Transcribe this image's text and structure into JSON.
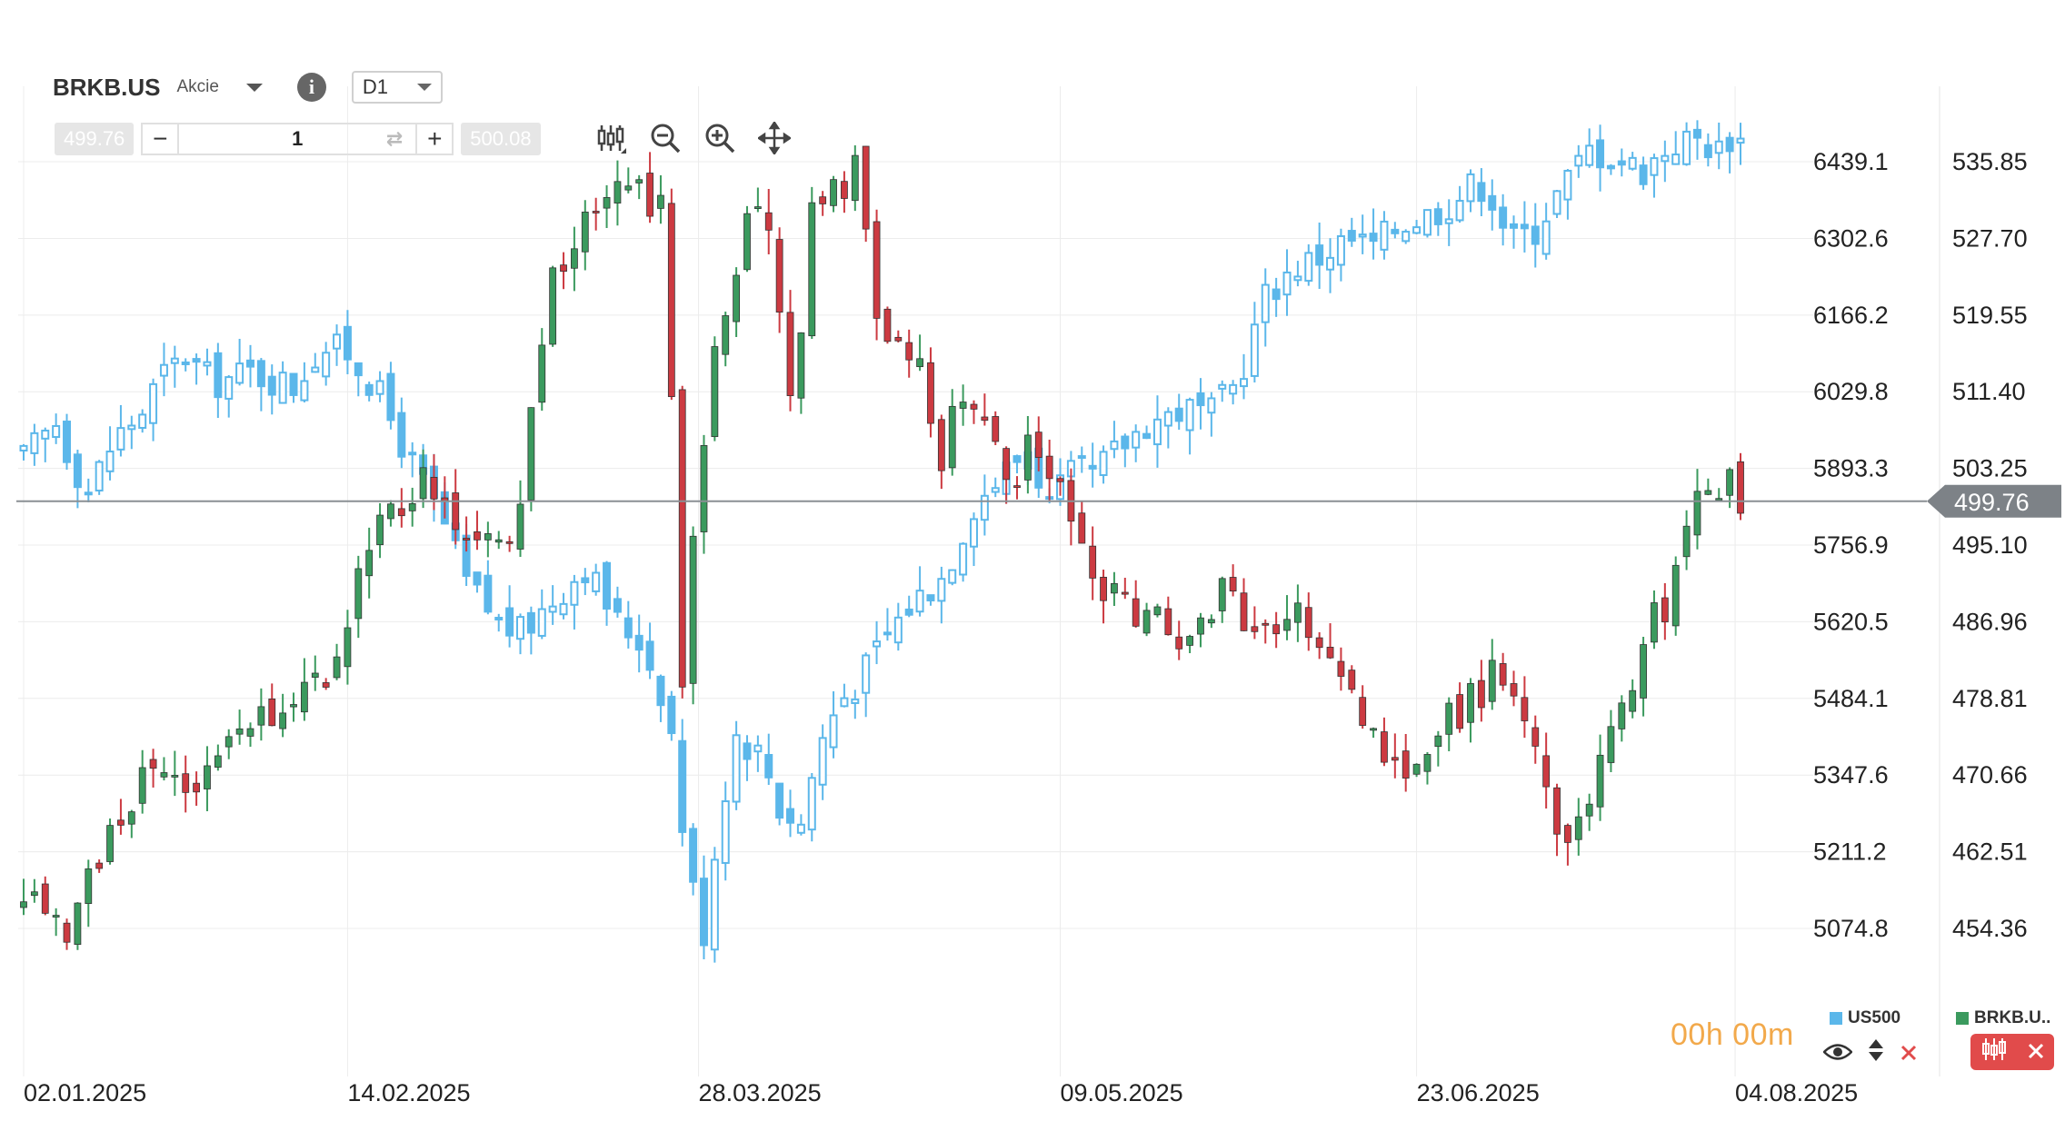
{
  "toolbar": {
    "symbol": "BRKB.US",
    "symbol_type": "Akcie",
    "timeframe": "D1",
    "sell_price": "499.76",
    "buy_price": "500.08",
    "volume": "1",
    "minus_label": "−",
    "plus_label": "+",
    "tools": [
      "candles-icon",
      "zoom-out-icon",
      "zoom-in-icon",
      "move-icon"
    ]
  },
  "timer": "00h 00m",
  "legend": {
    "us500_label": "US500",
    "us500_color": "#5bb7ea",
    "brkb_label": "BRKB.U..",
    "brkb_color": "#3b9a5e"
  },
  "colors": {
    "up": "#3b9a5e",
    "down": "#cc3a41",
    "us500": "#5bb7ea",
    "price_line": "#8a8f94",
    "price_tag": "#7d8287"
  },
  "chart_data": {
    "type": "candlestick",
    "title": "",
    "x_labels": [
      "02.01.2025",
      "14.02.2025",
      "28.03.2025",
      "09.05.2025",
      "23.06.2025",
      "04.08.2025"
    ],
    "left_axis": {
      "label": "",
      "ticks": [
        6439.1,
        6302.6,
        6166.2,
        6029.8,
        5893.3,
        5756.9,
        5620.5,
        5484.1,
        5347.6,
        5211.2,
        5074.8
      ],
      "tick_labels": [
        "6439.1",
        "6302.6",
        "6166.2",
        "6029.8",
        "5893.3",
        "5756.9",
        "5620.5",
        "5484.1",
        "5347.6",
        "5211.2",
        "5074.8"
      ]
    },
    "right_axis": {
      "label": "",
      "ticks": [
        535.85,
        527.7,
        519.55,
        511.4,
        503.25,
        495.1,
        486.96,
        478.81,
        470.66,
        462.51,
        454.36
      ],
      "tick_labels": [
        "535.85",
        "527.70",
        "519.55",
        "511.40",
        "503.25",
        "495.10",
        "486.96",
        "478.81",
        "470.66",
        "462.51",
        "454.36"
      ]
    },
    "current_price": 499.76,
    "current_price_label": "499.76",
    "grid": true,
    "series": [
      {
        "name": "US500",
        "axis": "left",
        "style": "hollow-candles",
        "close_path": [
          [
            0,
            5910
          ],
          [
            6,
            5975
          ],
          [
            9,
            5905
          ],
          [
            12,
            5855
          ],
          [
            17,
            5948
          ],
          [
            22,
            5995
          ],
          [
            25,
            6050
          ],
          [
            30,
            6095
          ],
          [
            35,
            6045
          ],
          [
            42,
            6065
          ],
          [
            50,
            6040
          ],
          [
            55,
            6110
          ],
          [
            60,
            6100
          ],
          [
            65,
            6040
          ],
          [
            68,
            5980
          ],
          [
            72,
            5900
          ],
          [
            78,
            5790
          ],
          [
            82,
            5690
          ],
          [
            88,
            5620
          ],
          [
            92,
            5600
          ],
          [
            98,
            5660
          ],
          [
            104,
            5720
          ],
          [
            110,
            5620
          ],
          [
            114,
            5590
          ],
          [
            118,
            5500
          ],
          [
            120,
            5420
          ],
          [
            123,
            5180
          ],
          [
            126,
            5070
          ],
          [
            129,
            5280
          ],
          [
            132,
            5420
          ],
          [
            137,
            5380
          ],
          [
            140,
            5290
          ],
          [
            144,
            5260
          ],
          [
            147,
            5390
          ],
          [
            151,
            5480
          ],
          [
            155,
            5520
          ],
          [
            160,
            5600
          ],
          [
            165,
            5660
          ],
          [
            170,
            5700
          ],
          [
            173,
            5760
          ],
          [
            176,
            5830
          ],
          [
            180,
            5870
          ],
          [
            186,
            5930
          ],
          [
            190,
            5830
          ],
          [
            195,
            5890
          ],
          [
            198,
            5880
          ],
          [
            203,
            5930
          ],
          [
            208,
            5975
          ],
          [
            215,
            6000
          ],
          [
            220,
            5990
          ],
          [
            225,
            6050
          ],
          [
            230,
            6200
          ],
          [
            235,
            6250
          ],
          [
            240,
            6270
          ],
          [
            245,
            6300
          ],
          [
            250,
            6290
          ],
          [
            255,
            6330
          ],
          [
            260,
            6345
          ],
          [
            265,
            6370
          ],
          [
            268,
            6395
          ],
          [
            271,
            6400
          ],
          [
            273,
            6350
          ],
          [
            276,
            6300
          ],
          [
            280,
            6320
          ],
          [
            285,
            6395
          ],
          [
            290,
            6460
          ],
          [
            295,
            6445
          ],
          [
            300,
            6425
          ],
          [
            305,
            6470
          ],
          [
            310,
            6480
          ],
          [
            314,
            6460
          ],
          [
            316,
            6485
          ],
          [
            318,
            6475
          ]
        ]
      },
      {
        "name": "BRKB.US",
        "axis": "right",
        "style": "candles",
        "close_path": [
          [
            0,
            456.0
          ],
          [
            4,
            457.5
          ],
          [
            8,
            451.5
          ],
          [
            13,
            461.5
          ],
          [
            18,
            465.5
          ],
          [
            23,
            472.5
          ],
          [
            27,
            470.0
          ],
          [
            33,
            469.5
          ],
          [
            38,
            473.5
          ],
          [
            43,
            476.0
          ],
          [
            48,
            478.0
          ],
          [
            53,
            481.0
          ],
          [
            57,
            480.5
          ],
          [
            62,
            491.0
          ],
          [
            66,
            500.0
          ],
          [
            70,
            497.0
          ],
          [
            74,
            503.5
          ],
          [
            78,
            498.5
          ],
          [
            82,
            494.0
          ],
          [
            86,
            498.0
          ],
          [
            88,
            494.5
          ],
          [
            91,
            495.5
          ],
          [
            94,
            510.0
          ],
          [
            97,
            522.0
          ],
          [
            100,
            524.5
          ],
          [
            104,
            529.0
          ],
          [
            108,
            532.0
          ],
          [
            112,
            534.0
          ],
          [
            115,
            532.0
          ],
          [
            117,
            531.5
          ],
          [
            119,
            533.0
          ],
          [
            120,
            512.0
          ],
          [
            122,
            480.0
          ],
          [
            124,
            495.0
          ],
          [
            126,
            507.0
          ],
          [
            128,
            515.0
          ],
          [
            131,
            520.0
          ],
          [
            133,
            528.5
          ],
          [
            137,
            533.0
          ],
          [
            140,
            519.0
          ],
          [
            142,
            510.0
          ],
          [
            144,
            518.0
          ],
          [
            146,
            531.0
          ],
          [
            149,
            534.0
          ],
          [
            152,
            533.5
          ],
          [
            155,
            537.0
          ],
          [
            157,
            519.5
          ],
          [
            160,
            517.0
          ],
          [
            163,
            517.5
          ],
          [
            166,
            513.5
          ],
          [
            168,
            508.5
          ],
          [
            170,
            504.5
          ],
          [
            173,
            511.0
          ],
          [
            176,
            510.5
          ],
          [
            180,
            504.5
          ],
          [
            184,
            501.5
          ],
          [
            186,
            505.5
          ],
          [
            189,
            502.5
          ],
          [
            192,
            501.0
          ],
          [
            196,
            494.5
          ],
          [
            198,
            492.5
          ],
          [
            201,
            490.0
          ],
          [
            204,
            491.5
          ],
          [
            207,
            486.0
          ],
          [
            210,
            487.5
          ],
          [
            214,
            484.5
          ],
          [
            217,
            487.5
          ],
          [
            221,
            487.0
          ],
          [
            223,
            493.5
          ],
          [
            226,
            487.5
          ],
          [
            229,
            485.0
          ],
          [
            233,
            485.0
          ],
          [
            236,
            488.5
          ],
          [
            239,
            486.0
          ],
          [
            242,
            482.0
          ],
          [
            245,
            479.0
          ],
          [
            248,
            477.0
          ],
          [
            251,
            474.0
          ],
          [
            254,
            472.5
          ],
          [
            257,
            470.5
          ],
          [
            260,
            474.0
          ],
          [
            263,
            476.5
          ],
          [
            266,
            477.0
          ],
          [
            268,
            481.0
          ],
          [
            270,
            479.5
          ],
          [
            273,
            482.5
          ],
          [
            276,
            479.5
          ],
          [
            279,
            476.5
          ],
          [
            281,
            472.0
          ],
          [
            283,
            465.5
          ],
          [
            285,
            462.0
          ],
          [
            287,
            464.0
          ],
          [
            289,
            467.5
          ],
          [
            291,
            471.0
          ],
          [
            294,
            474.5
          ],
          [
            296,
            477.0
          ],
          [
            298,
            481.0
          ],
          [
            300,
            486.0
          ],
          [
            302,
            487.5
          ],
          [
            304,
            486.5
          ],
          [
            306,
            491.5
          ],
          [
            308,
            496.0
          ],
          [
            310,
            499.5
          ],
          [
            312,
            502.5
          ],
          [
            314,
            501.0
          ],
          [
            316,
            503.0
          ],
          [
            318,
            499.76
          ]
        ]
      }
    ]
  }
}
